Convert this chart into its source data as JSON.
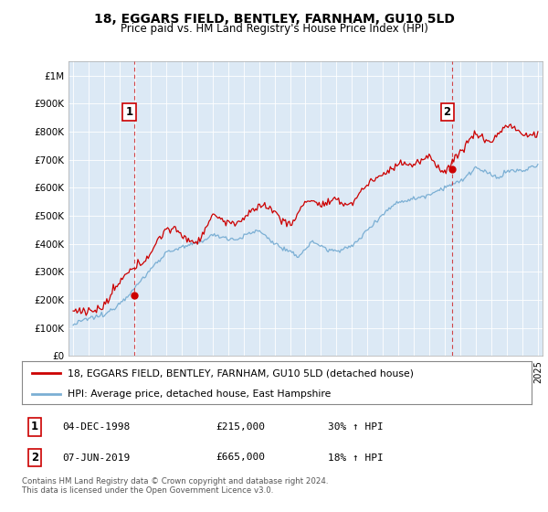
{
  "title": "18, EGGARS FIELD, BENTLEY, FARNHAM, GU10 5LD",
  "subtitle": "Price paid vs. HM Land Registry's House Price Index (HPI)",
  "ylim": [
    0,
    1050000
  ],
  "yticks": [
    0,
    100000,
    200000,
    300000,
    400000,
    500000,
    600000,
    700000,
    800000,
    900000,
    1000000
  ],
  "ytick_labels": [
    "£0",
    "£100K",
    "£200K",
    "£300K",
    "£400K",
    "£500K",
    "£600K",
    "£700K",
    "£800K",
    "£900K",
    "£1M"
  ],
  "xlim_left": 1994.7,
  "xlim_right": 2025.3,
  "sale1_date": 1998.92,
  "sale1_price": 215000,
  "sale2_date": 2019.44,
  "sale2_price": 665000,
  "legend_line1": "18, EGGARS FIELD, BENTLEY, FARNHAM, GU10 5LD (detached house)",
  "legend_line2": "HPI: Average price, detached house, East Hampshire",
  "table_row1": [
    "1",
    "04-DEC-1998",
    "£215,000",
    "30% ↑ HPI"
  ],
  "table_row2": [
    "2",
    "07-JUN-2019",
    "£665,000",
    "18% ↑ HPI"
  ],
  "footer": "Contains HM Land Registry data © Crown copyright and database right 2024.\nThis data is licensed under the Open Government Licence v3.0.",
  "price_color": "#cc0000",
  "hpi_color": "#7bafd4",
  "vline_color": "#cc0000",
  "chart_bg": "#dce9f5",
  "background_color": "#ffffff",
  "grid_color": "#ffffff"
}
